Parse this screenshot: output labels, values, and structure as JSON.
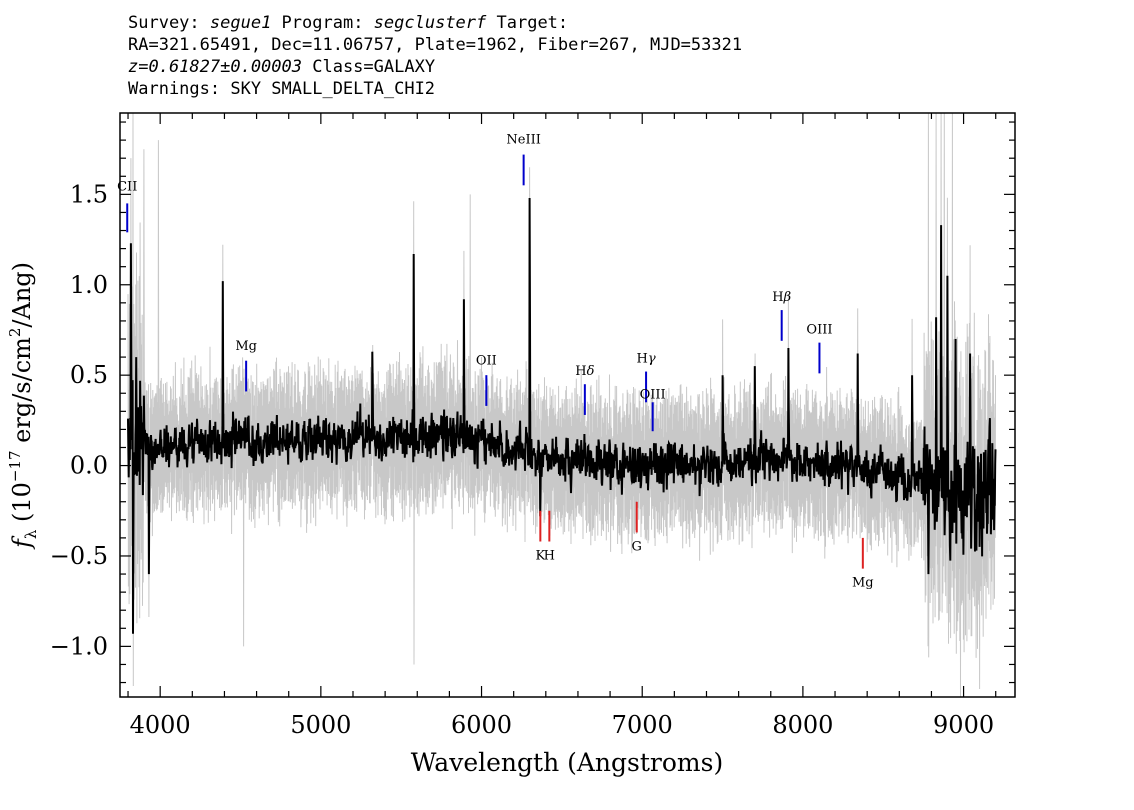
{
  "header": {
    "line1": {
      "survey_label": "Survey: ",
      "survey": "segue1",
      "program_label": " Program: ",
      "program": "segclusterf",
      "target_label": " Target:"
    },
    "line2": "RA=321.65491, Dec=11.06757, Plate=1962, Fiber=267, MJD=53321",
    "line3": {
      "redshift": "z=0.61827±0.00003",
      "class": " Class=GALAXY"
    },
    "line4": "Warnings: SKY SMALL_DELTA_CHI2"
  },
  "chart_data": {
    "type": "line",
    "xlabel": "Wavelength (Angstroms)",
    "ylabel": "f_λ (10^-17 erg/s/cm^2/Ang)",
    "ylabel_parts": {
      "f": "f",
      "lambda": "λ",
      "open": " (10",
      "exponent": "−17",
      "units_a": " erg/s/cm",
      "units_sup": "2",
      "units_b": "/Ang)"
    },
    "xlim": [
      3750,
      9320
    ],
    "ylim": [
      -1.28,
      1.95
    ],
    "x_ticks": [
      4000,
      5000,
      6000,
      7000,
      8000,
      9000
    ],
    "x_tick_labels": [
      "4000",
      "5000",
      "6000",
      "7000",
      "8000",
      "9000"
    ],
    "y_ticks": [
      -1.0,
      -0.5,
      0.0,
      0.5,
      1.0,
      1.5
    ],
    "y_tick_labels": [
      "−1.0",
      "−0.5",
      "0.0",
      "0.5",
      "1.0",
      "1.5"
    ],
    "grid": false,
    "series": [
      {
        "role": "data",
        "color": "#000000",
        "x_range": [
          3800,
          9200
        ],
        "continuum": [
          [
            3800,
            0.1
          ],
          [
            4000,
            0.11
          ],
          [
            4500,
            0.13
          ],
          [
            5000,
            0.15
          ],
          [
            5500,
            0.17
          ],
          [
            6000,
            0.15
          ],
          [
            6300,
            0.05
          ],
          [
            6600,
            0.02
          ],
          [
            7000,
            0.0
          ],
          [
            7400,
            0.0
          ],
          [
            7800,
            0.03
          ],
          [
            8200,
            0.0
          ],
          [
            8600,
            -0.05
          ],
          [
            9000,
            -0.2
          ],
          [
            9200,
            -0.05
          ]
        ],
        "spikes": [
          [
            3818,
            1.23
          ],
          [
            3830,
            -0.93
          ],
          [
            3850,
            0.6
          ],
          [
            3930,
            -0.6
          ],
          [
            4390,
            1.02
          ],
          [
            5320,
            0.63
          ],
          [
            5578,
            1.17
          ],
          [
            5890,
            0.92
          ],
          [
            6300,
            1.48
          ],
          [
            6365,
            -0.28
          ],
          [
            7500,
            0.5
          ],
          [
            7700,
            0.55
          ],
          [
            7910,
            0.65
          ],
          [
            8340,
            0.62
          ],
          [
            8680,
            0.5
          ],
          [
            8780,
            -0.6
          ],
          [
            8830,
            0.82
          ],
          [
            8860,
            1.33
          ],
          [
            8900,
            1.05
          ],
          [
            8950,
            0.7
          ],
          [
            9040,
            0.62
          ],
          [
            9100,
            -0.45
          ],
          [
            9170,
            -0.38
          ]
        ]
      },
      {
        "role": "error",
        "color": "#c8c8c8",
        "spikes": [
          [
            3830,
            1.95
          ],
          [
            3900,
            1.75
          ],
          [
            3990,
            1.8
          ],
          [
            4520,
            -1.0
          ],
          [
            5580,
            -1.1
          ],
          [
            5930,
            1.5
          ],
          [
            6300,
            1.65
          ],
          [
            8780,
            1.95
          ],
          [
            8830,
            1.95
          ],
          [
            8880,
            1.95
          ],
          [
            8930,
            1.95
          ],
          [
            8980,
            -1.28
          ]
        ]
      }
    ],
    "emission_lines": [
      {
        "label": "CII",
        "x": 3795,
        "y_low": 1.29,
        "y_high": 1.45,
        "label_y": 1.52,
        "color": "#0000cc"
      },
      {
        "label": "Mg",
        "x": 4535,
        "y_low": 0.41,
        "y_high": 0.58,
        "label_y": 0.64,
        "color": "#0000cc"
      },
      {
        "label": "OII",
        "x": 6030,
        "y_low": 0.33,
        "y_high": 0.5,
        "label_y": 0.56,
        "color": "#0000cc"
      },
      {
        "label": "NeIII",
        "x": 6262,
        "y_low": 1.55,
        "y_high": 1.72,
        "label_y": 1.78,
        "color": "#0000cc"
      },
      {
        "label": "Hδ",
        "x": 6643,
        "y_low": 0.28,
        "y_high": 0.45,
        "label_y": 0.5,
        "color": "#0000cc"
      },
      {
        "label": "Hγ",
        "x": 7024,
        "y_low": 0.35,
        "y_high": 0.52,
        "label_y": 0.57,
        "color": "#0000cc"
      },
      {
        "label": "OIII",
        "x": 7065,
        "y_low": 0.19,
        "y_high": 0.35,
        "label_y": 0.37,
        "color": "#0000cc"
      },
      {
        "label": "Hβ",
        "x": 7868,
        "y_low": 0.69,
        "y_high": 0.86,
        "label_y": 0.91,
        "color": "#0000cc"
      },
      {
        "label": "OIII",
        "x": 8103,
        "y_low": 0.51,
        "y_high": 0.68,
        "label_y": 0.73,
        "color": "#0000cc"
      }
    ],
    "absorption_lines": [
      {
        "label": "K",
        "x": 6366,
        "y_low": -0.42,
        "y_high": -0.25,
        "label_y": -0.52,
        "color": "#dd2222"
      },
      {
        "label": "H",
        "x": 6422,
        "y_low": -0.42,
        "y_high": -0.25,
        "label_y": -0.52,
        "color": "#dd2222"
      },
      {
        "label": "G",
        "x": 6966,
        "y_low": -0.37,
        "y_high": -0.2,
        "label_y": -0.47,
        "color": "#dd2222"
      },
      {
        "label": "Mg",
        "x": 8373,
        "y_low": -0.57,
        "y_high": -0.4,
        "label_y": -0.67,
        "color": "#dd2222"
      }
    ]
  }
}
